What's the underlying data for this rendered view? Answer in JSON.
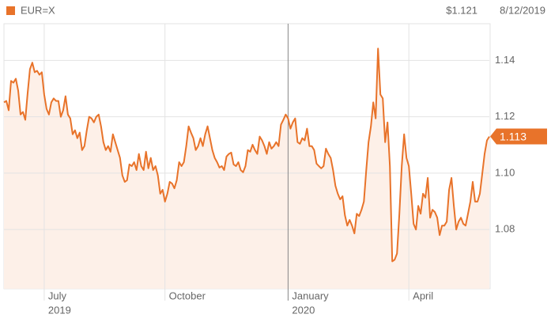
{
  "chart_data": {
    "type": "line",
    "legend_label": "EUR=X",
    "price_label": "$1.121",
    "date": "8/12/2019",
    "current_price": 1.113,
    "series": [
      {
        "name": "EUR=X",
        "color": "#e8732a",
        "fill": "#fdf0e8",
        "values": [
          1.1251,
          1.1256,
          1.1223,
          1.1327,
          1.1321,
          1.1335,
          1.1293,
          1.1208,
          1.1217,
          1.1189,
          1.1285,
          1.1369,
          1.1392,
          1.1358,
          1.1363,
          1.1349,
          1.1358,
          1.1279,
          1.1228,
          1.1208,
          1.1251,
          1.1265,
          1.1256,
          1.1256,
          1.12,
          1.1223,
          1.1273,
          1.1208,
          1.1194,
          1.1138,
          1.1152,
          1.1124,
          1.1144,
          1.1082,
          1.1096,
          1.1152,
          1.12,
          1.1194,
          1.118,
          1.12,
          1.1208,
          1.1166,
          1.111,
          1.1082,
          1.1096,
          1.1076,
          1.1138,
          1.111,
          1.1082,
          1.1054,
          1.0992,
          1.0969,
          1.0975,
          1.1031,
          1.1025,
          1.1039,
          1.1011,
          1.1068,
          1.1025,
          1.1011,
          1.1076,
          1.1017,
          1.1054,
          1.1011,
          1.1025,
          1.0992,
          1.0927,
          1.0941,
          1.0899,
          1.0927,
          1.0969,
          1.0963,
          1.0946,
          1.0975,
          1.1039,
          1.1025,
          1.1039,
          1.1096,
          1.1166,
          1.1144,
          1.1124,
          1.1082,
          1.1096,
          1.1124,
          1.1096,
          1.1138,
          1.1166,
          1.1124,
          1.1082,
          1.1054,
          1.1039,
          1.102,
          1.1025,
          1.1011,
          1.1059,
          1.1068,
          1.1073,
          1.1031,
          1.1025,
          1.1039,
          1.1011,
          1.1003,
          1.1025,
          1.1082,
          1.1076,
          1.1101,
          1.1082,
          1.1068,
          1.113,
          1.1116,
          1.1096,
          1.1068,
          1.111,
          1.1087,
          1.1096,
          1.111,
          1.1096,
          1.1172,
          1.1189,
          1.1208,
          1.1194,
          1.1158,
          1.118,
          1.1194,
          1.111,
          1.1104,
          1.1124,
          1.1116,
          1.1158,
          1.1096,
          1.1096,
          1.1082,
          1.1034,
          1.1025,
          1.1017,
          1.1025,
          1.1087,
          1.1068,
          1.1054,
          1.1011,
          1.0955,
          1.0927,
          1.0907,
          1.0918,
          1.0851,
          1.0814,
          1.0834,
          1.0814,
          1.0786,
          1.0856,
          1.0848,
          1.087,
          1.0899,
          1.1011,
          1.111,
          1.1166,
          1.1251,
          1.1194,
          1.1442,
          1.1279,
          1.1265,
          1.111,
          1.118,
          1.1025,
          1.0687,
          1.0693,
          1.0715,
          1.0856,
          1.1025,
          1.1138,
          1.1054,
          1.1025,
          1.0927,
          1.082,
          1.08,
          1.0884,
          1.0856,
          1.0927,
          1.0913,
          1.0983,
          1.0842,
          1.087,
          1.0862,
          1.0842,
          1.078,
          1.0814,
          1.0814,
          1.0828,
          1.0941,
          1.0983,
          1.0884,
          1.08,
          1.0828,
          1.0842,
          1.082,
          1.0814,
          1.0856,
          1.0899,
          1.0969,
          1.0899,
          1.0899,
          1.0927,
          1.0997,
          1.1068,
          1.1116,
          1.113
        ]
      }
    ],
    "ylim": [
      1.059,
      1.153
    ],
    "yticks": [
      {
        "value": 1.08,
        "label": "1.08"
      },
      {
        "value": 1.1,
        "label": "1.10"
      },
      {
        "value": 1.12,
        "label": "1.12"
      },
      {
        "value": 1.14,
        "label": "1.14"
      }
    ],
    "xticks": [
      {
        "value": 17,
        "label": "July"
      },
      {
        "value": 68,
        "label": "October"
      },
      {
        "value": 120,
        "label": "January"
      },
      {
        "value": 171,
        "label": "April"
      }
    ],
    "year_labels": [
      {
        "value": 17,
        "label": "2019"
      },
      {
        "value": 120,
        "label": "2020"
      }
    ],
    "grid": true
  }
}
